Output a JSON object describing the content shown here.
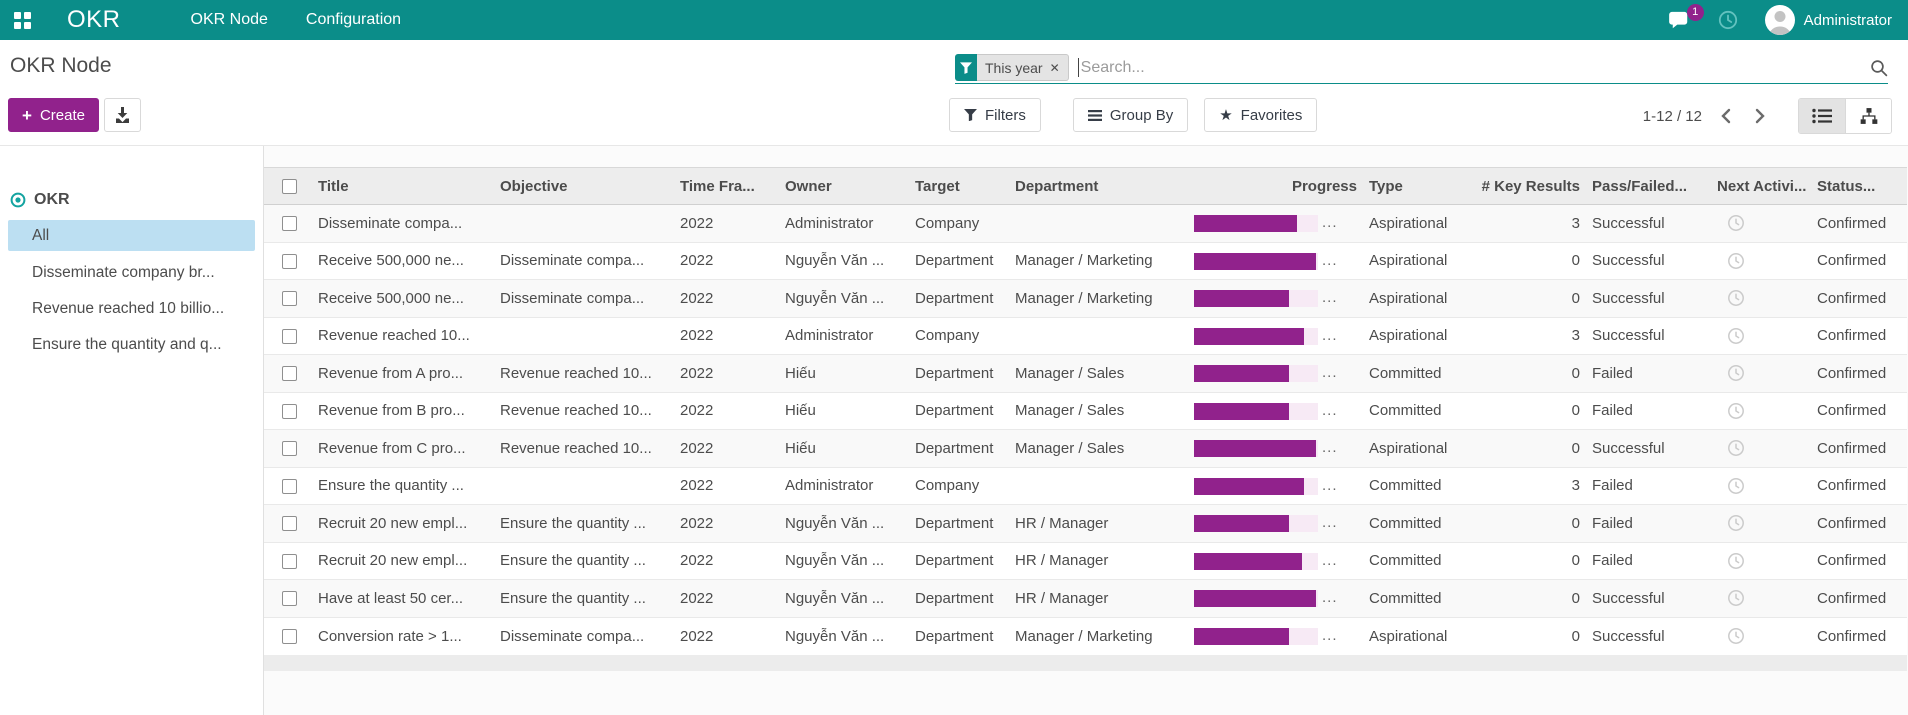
{
  "colors": {
    "topbar": "#0b8d89",
    "accent": "#91228c",
    "selected_item_bg": "#bcdff2",
    "progress_track": "#f7eaf5"
  },
  "topbar": {
    "brand": "OKR",
    "menus": [
      {
        "label": "OKR Node"
      },
      {
        "label": "Configuration"
      }
    ],
    "messages_badge": "1",
    "user_name": "Administrator"
  },
  "control_panel": {
    "breadcrumb": "OKR Node",
    "create_label": "Create",
    "search": {
      "facet_label": "This year",
      "facet_remove": "✕",
      "placeholder": "Search..."
    },
    "filters_label": "Filters",
    "group_by_label": "Group By",
    "favorites_label": "Favorites",
    "pager": {
      "display": "1-12 / 12"
    }
  },
  "sidebar": {
    "root_label": "OKR",
    "items": [
      {
        "label": "All",
        "active": true
      },
      {
        "label": "Disseminate company br...",
        "active": false
      },
      {
        "label": "Revenue reached 10 billio...",
        "active": false
      },
      {
        "label": "Ensure the quantity and q...",
        "active": false
      }
    ]
  },
  "table": {
    "columns": [
      "Title",
      "Objective",
      "Time Fra...",
      "Owner",
      "Target",
      "Department",
      "Progress",
      "Type",
      "# Key Results",
      "Pass/Failed...",
      "Next Activi...",
      "Status..."
    ],
    "kebab_icon": "⋮",
    "rows": [
      {
        "title": "Disseminate compa...",
        "objective": "",
        "time_frame": "2022",
        "owner": "Administrator",
        "target": "Company",
        "department": "",
        "progress_percent": 83,
        "progress_label": "...",
        "type": "Aspirational",
        "key_results": "3",
        "pass_failed": "Successful",
        "status": "Confirmed"
      },
      {
        "title": "Receive 500,000 ne...",
        "objective": "Disseminate compa...",
        "time_frame": "2022",
        "owner": "Nguyễn Văn ...",
        "target": "Department",
        "department": "Manager / Marketing",
        "progress_percent": 98,
        "progress_label": "...",
        "type": "Aspirational",
        "key_results": "0",
        "pass_failed": "Successful",
        "status": "Confirmed"
      },
      {
        "title": "Receive 500,000 ne...",
        "objective": "Disseminate compa...",
        "time_frame": "2022",
        "owner": "Nguyễn Văn ...",
        "target": "Department",
        "department": "Manager / Marketing",
        "progress_percent": 77,
        "progress_label": "...",
        "type": "Aspirational",
        "key_results": "0",
        "pass_failed": "Successful",
        "status": "Confirmed"
      },
      {
        "title": "Revenue reached 10...",
        "objective": "",
        "time_frame": "2022",
        "owner": "Administrator",
        "target": "Company",
        "department": "",
        "progress_percent": 89,
        "progress_label": "...",
        "type": "Aspirational",
        "key_results": "3",
        "pass_failed": "Successful",
        "status": "Confirmed"
      },
      {
        "title": "Revenue from A pro...",
        "objective": "Revenue reached 10...",
        "time_frame": "2022",
        "owner": "Hiếu",
        "target": "Department",
        "department": "Manager / Sales",
        "progress_percent": 77,
        "progress_label": "...",
        "type": "Committed",
        "key_results": "0",
        "pass_failed": "Failed",
        "status": "Confirmed"
      },
      {
        "title": "Revenue from B pro...",
        "objective": "Revenue reached 10...",
        "time_frame": "2022",
        "owner": "Hiếu",
        "target": "Department",
        "department": "Manager / Sales",
        "progress_percent": 77,
        "progress_label": "...",
        "type": "Committed",
        "key_results": "0",
        "pass_failed": "Failed",
        "status": "Confirmed"
      },
      {
        "title": "Revenue from C pro...",
        "objective": "Revenue reached 10...",
        "time_frame": "2022",
        "owner": "Hiếu",
        "target": "Department",
        "department": "Manager / Sales",
        "progress_percent": 98,
        "progress_label": "...",
        "type": "Aspirational",
        "key_results": "0",
        "pass_failed": "Successful",
        "status": "Confirmed"
      },
      {
        "title": "Ensure the quantity ...",
        "objective": "",
        "time_frame": "2022",
        "owner": "Administrator",
        "target": "Company",
        "department": "",
        "progress_percent": 89,
        "progress_label": "...",
        "type": "Committed",
        "key_results": "3",
        "pass_failed": "Failed",
        "status": "Confirmed"
      },
      {
        "title": "Recruit 20 new empl...",
        "objective": "Ensure the quantity ...",
        "time_frame": "2022",
        "owner": "Nguyễn Văn ...",
        "target": "Department",
        "department": "HR / Manager",
        "progress_percent": 77,
        "progress_label": "...",
        "type": "Committed",
        "key_results": "0",
        "pass_failed": "Failed",
        "status": "Confirmed"
      },
      {
        "title": "Recruit 20 new empl...",
        "objective": "Ensure the quantity ...",
        "time_frame": "2022",
        "owner": "Nguyễn Văn ...",
        "target": "Department",
        "department": "HR / Manager",
        "progress_percent": 87,
        "progress_label": "...",
        "type": "Committed",
        "key_results": "0",
        "pass_failed": "Failed",
        "status": "Confirmed"
      },
      {
        "title": "Have at least 50 cer...",
        "objective": "Ensure the quantity ...",
        "time_frame": "2022",
        "owner": "Nguyễn Văn ...",
        "target": "Department",
        "department": "HR / Manager",
        "progress_percent": 98,
        "progress_label": "...",
        "type": "Committed",
        "key_results": "0",
        "pass_failed": "Successful",
        "status": "Confirmed"
      },
      {
        "title": "Conversion rate > 1...",
        "objective": "Disseminate compa...",
        "time_frame": "2022",
        "owner": "Nguyễn Văn ...",
        "target": "Department",
        "department": "Manager / Marketing",
        "progress_percent": 77,
        "progress_label": "...",
        "type": "Aspirational",
        "key_results": "0",
        "pass_failed": "Successful",
        "status": "Confirmed"
      }
    ]
  }
}
